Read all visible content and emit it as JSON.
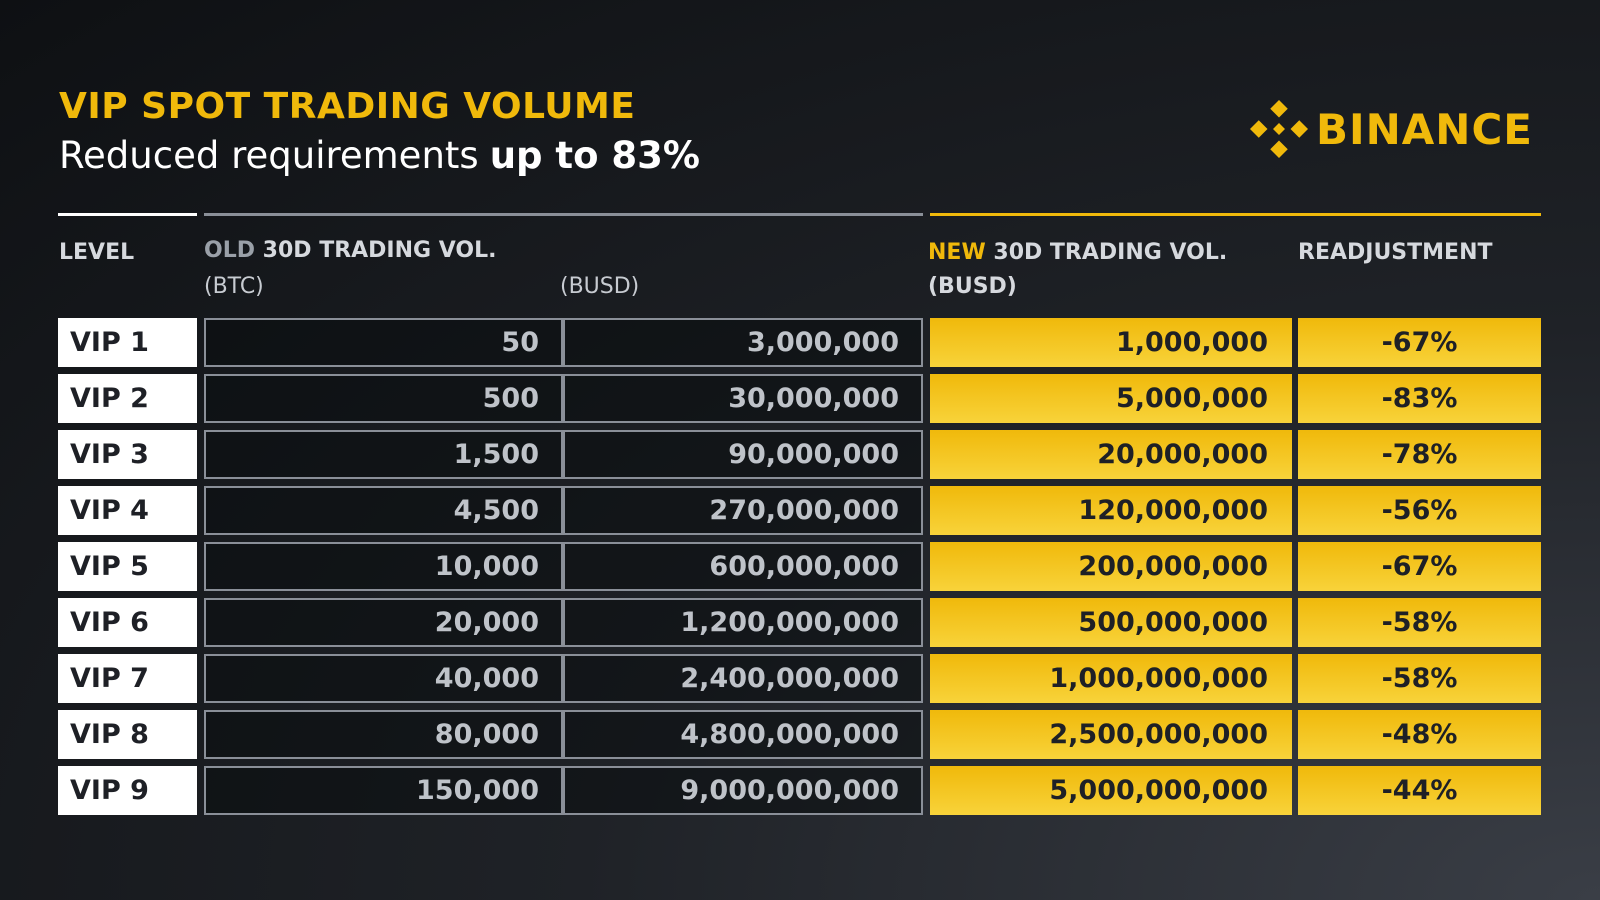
{
  "header": {
    "title": "VIP SPOT TRADING VOLUME",
    "subtitle": "Reduced requirements",
    "subtitle_bold": "up to 83%"
  },
  "logo": {
    "text": "BINANCE"
  },
  "table": {
    "columns": {
      "level": "LEVEL",
      "old_tag": "OLD",
      "old_label": "30D TRADING VOL.",
      "old_unit_1": "(BTC)",
      "old_unit_2": "(BUSD)",
      "new_tag": "NEW",
      "new_label": "30D TRADING VOL.",
      "new_unit": "(BUSD)",
      "readjustment": "READJUSTMENT"
    },
    "rows": [
      [
        "VIP 1",
        "50",
        "3,000,000",
        "1,000,000",
        "-67%"
      ],
      [
        "VIP 2",
        "500",
        "30,000,000",
        "5,000,000",
        "-83%"
      ],
      [
        "VIP 3",
        "1,500",
        "90,000,000",
        "20,000,000",
        "-78%"
      ],
      [
        "VIP 4",
        "4,500",
        "270,000,000",
        "120,000,000",
        "-56%"
      ],
      [
        "VIP 5",
        "10,000",
        "600,000,000",
        "200,000,000",
        "-67%"
      ],
      [
        "VIP 6",
        "20,000",
        "1,200,000,000",
        "500,000,000",
        "-58%"
      ],
      [
        "VIP 7",
        "40,000",
        "2,400,000,000",
        "1,000,000,000",
        "-58%"
      ],
      [
        "VIP 8",
        "80,000",
        "4,800,000,000",
        "2,500,000,000",
        "-48%"
      ],
      [
        "VIP 9",
        "150,000",
        "9,000,000,000",
        "5,000,000,000",
        "-44%"
      ]
    ]
  }
}
